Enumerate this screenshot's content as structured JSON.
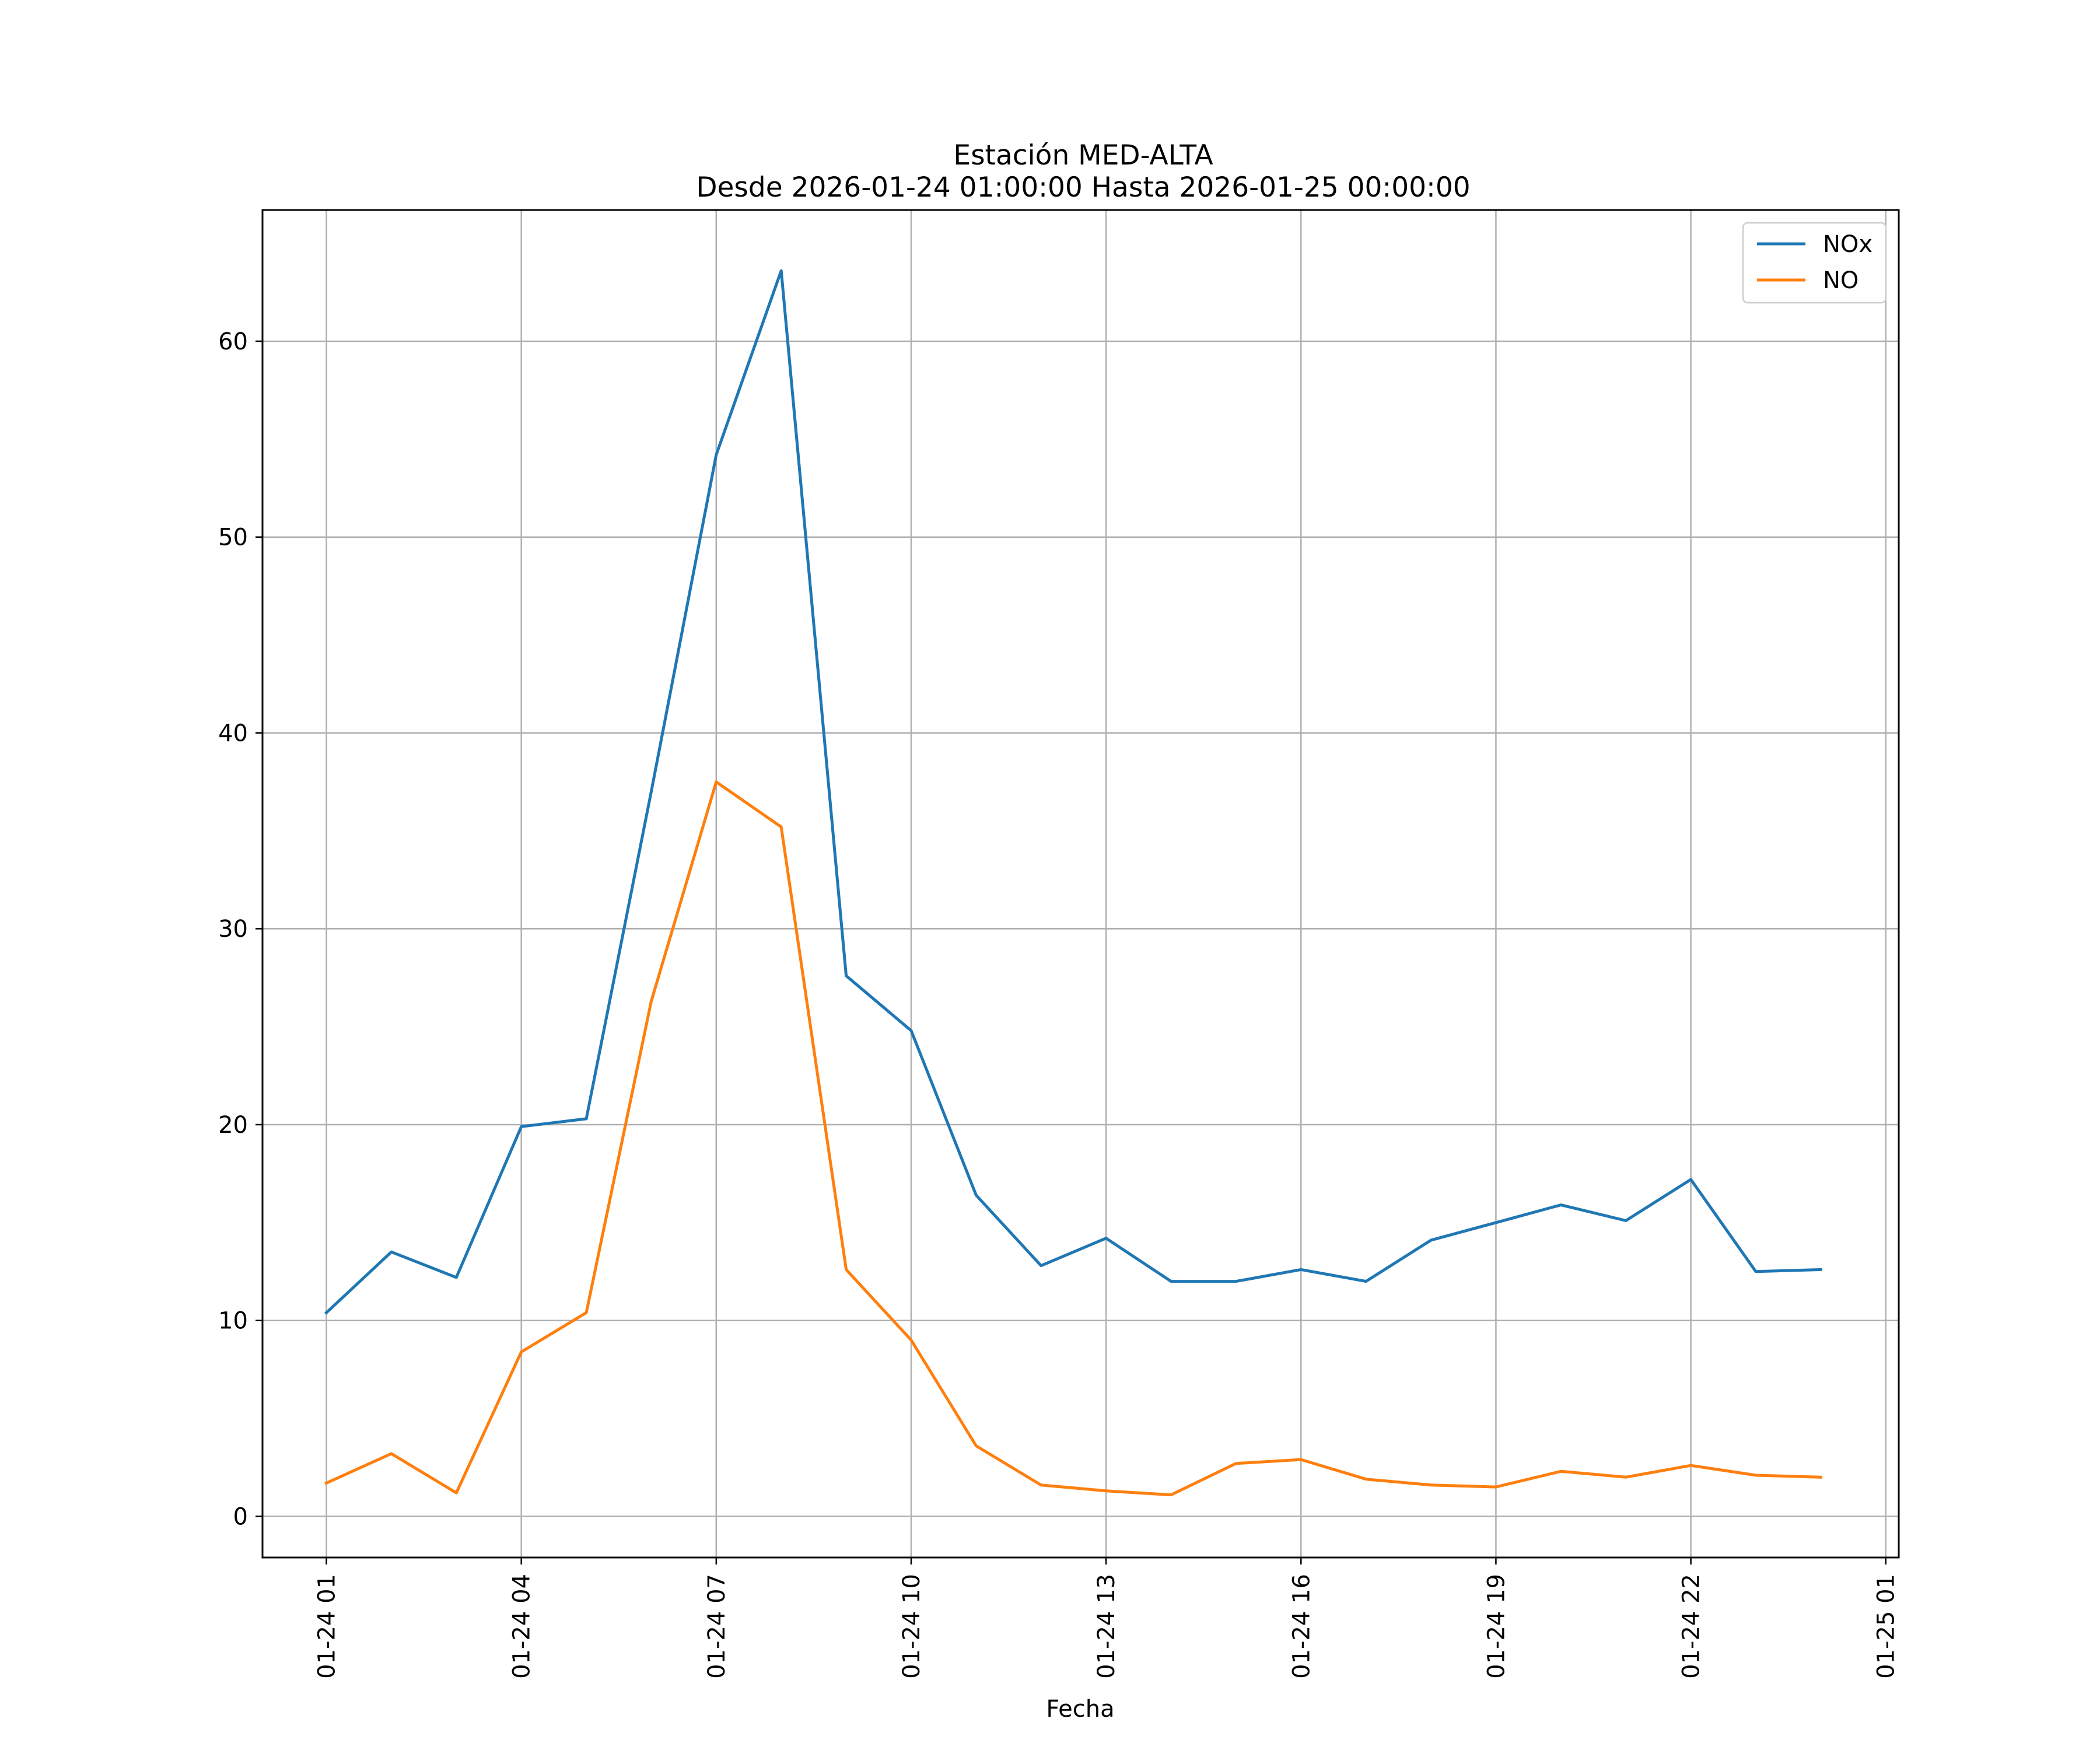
{
  "chart_data": {
    "type": "line",
    "title": "Estación MED-ALTA",
    "subtitle": "Desde 2026-01-24 01:00:00 Hasta 2026-01-25 00:00:00",
    "xlabel": "Fecha",
    "ylabel": "",
    "ylim": [
      -2.1,
      66.7
    ],
    "xlim": [
      "2026-01-24 00:01",
      "2026-01-25 01:12"
    ],
    "yticks": [
      0,
      10,
      20,
      30,
      40,
      50,
      60
    ],
    "xticks": [
      {
        "x": "2026-01-24 01:00",
        "label": "01-24 01"
      },
      {
        "x": "2026-01-24 04:00",
        "label": "01-24 04"
      },
      {
        "x": "2026-01-24 07:00",
        "label": "01-24 07"
      },
      {
        "x": "2026-01-24 10:00",
        "label": "01-24 10"
      },
      {
        "x": "2026-01-24 13:00",
        "label": "01-24 13"
      },
      {
        "x": "2026-01-24 16:00",
        "label": "01-24 16"
      },
      {
        "x": "2026-01-24 19:00",
        "label": "01-24 19"
      },
      {
        "x": "2026-01-24 22:00",
        "label": "01-24 22"
      },
      {
        "x": "2026-01-25 01:00",
        "label": "01-25 01"
      }
    ],
    "x": [
      "2026-01-24 01:00",
      "2026-01-24 02:00",
      "2026-01-24 03:00",
      "2026-01-24 04:00",
      "2026-01-24 05:00",
      "2026-01-24 06:00",
      "2026-01-24 07:00",
      "2026-01-24 08:00",
      "2026-01-24 09:00",
      "2026-01-24 10:00",
      "2026-01-24 11:00",
      "2026-01-24 12:00",
      "2026-01-24 13:00",
      "2026-01-24 14:00",
      "2026-01-24 15:00",
      "2026-01-24 16:00",
      "2026-01-24 17:00",
      "2026-01-24 18:00",
      "2026-01-24 19:00",
      "2026-01-24 20:00",
      "2026-01-24 21:00",
      "2026-01-24 22:00",
      "2026-01-24 23:00",
      "2026-01-25 00:00"
    ],
    "series": [
      {
        "name": "NOx",
        "color": "#1f77b4",
        "values": [
          10.4,
          13.5,
          12.2,
          19.9,
          20.3,
          37.0,
          54.2,
          63.6,
          27.6,
          24.8,
          16.4,
          12.8,
          14.2,
          12.0,
          12.0,
          12.6,
          12.0,
          14.1,
          15.0,
          15.9,
          15.1,
          17.2,
          12.5,
          12.6
        ]
      },
      {
        "name": "NO",
        "color": "#ff7f0e",
        "values": [
          1.7,
          3.2,
          1.2,
          8.4,
          10.4,
          26.3,
          37.5,
          35.2,
          12.6,
          9.0,
          3.6,
          1.6,
          1.3,
          1.1,
          2.7,
          2.9,
          1.9,
          1.6,
          1.5,
          2.3,
          2.0,
          2.6,
          2.1,
          2.0
        ]
      }
    ],
    "grid": true,
    "legend_position": "top-right"
  }
}
